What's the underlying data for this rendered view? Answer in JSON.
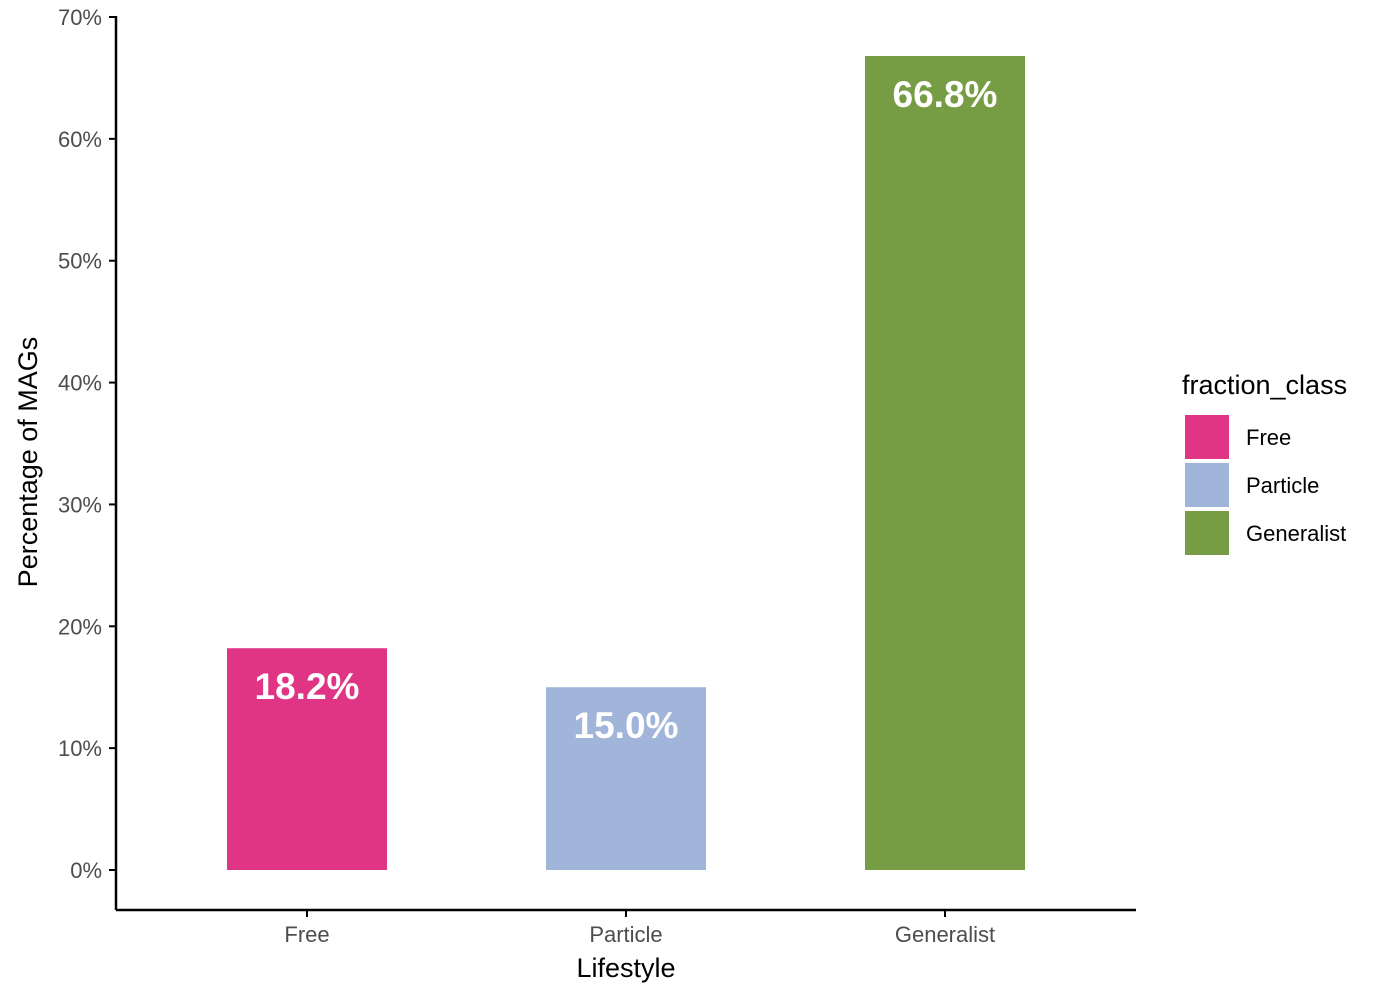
{
  "chart_data": {
    "type": "bar",
    "categories": [
      "Free",
      "Particle",
      "Generalist"
    ],
    "values": [
      18.2,
      15.0,
      66.8
    ],
    "data_labels": [
      "18.2%",
      "15.0%",
      "66.8%"
    ],
    "colors": [
      "#e03585",
      "#a1b4da",
      "#769c44"
    ],
    "xlabel": "Lifestyle",
    "ylabel": "Percentage of MAGs",
    "ylim": [
      0,
      70
    ],
    "yticks": [
      0,
      10,
      20,
      30,
      40,
      50,
      60,
      70
    ],
    "ytick_labels": [
      "0%",
      "10%",
      "20%",
      "30%",
      "40%",
      "50%",
      "60%",
      "70%"
    ],
    "grid": false,
    "legend": {
      "title": "fraction_class",
      "placement": "right",
      "entries": [
        "Free",
        "Particle",
        "Generalist"
      ]
    }
  }
}
